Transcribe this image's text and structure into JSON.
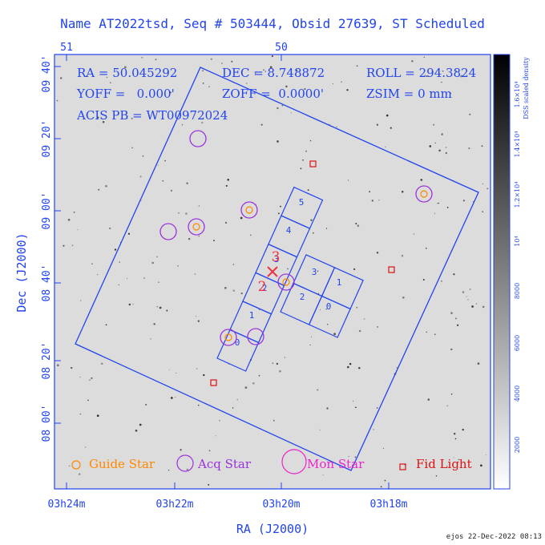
{
  "chart_data": {
    "type": "scatter",
    "title": "Name AT2022tsd, Seq # 503444, Obsid 27639, ST Scheduled",
    "xlabel": "RA (J2000)",
    "ylabel": "Dec (J2000)",
    "x_tick_labels": [
      "03h24m",
      "03h22m",
      "03h20m",
      "03h18m"
    ],
    "top_tick_labels": [
      "51",
      "50"
    ],
    "y_tick_labels": [
      "08 00'",
      "08 20'",
      "08 40'",
      "09 00'",
      "09 20'",
      "09 40'"
    ],
    "info": {
      "ra": "RA = 50.045292",
      "dec": "DEC = 8.748872",
      "roll": "ROLL = 294.3824",
      "yoff": "YOFF =   0.000'",
      "zoff": "ZOFF =  0.0000'",
      "zsim": "ZSIM = 0 mm",
      "acis_pb": "ACIS PB = WT00972024"
    },
    "colorbar": {
      "label": "DSS scaled density",
      "tick_labels": [
        "2000",
        "4000",
        "6000",
        "8000",
        "10⁴",
        "1.2×10⁴",
        "1.4×10⁴",
        "1.6×10⁴"
      ]
    },
    "ccd_labels": [
      "0",
      "1",
      "2",
      "3",
      "4",
      "5",
      "0",
      "1",
      "2",
      "3"
    ],
    "si_labels": [
      "2",
      "3"
    ],
    "legend": {
      "guide": "Guide Star",
      "acq": "Acq Star",
      "mon": "Mon Star",
      "fid": "Fid Light"
    },
    "colors": {
      "blue": "#2244ee",
      "guide": "#ff8800",
      "acq": "#9933dd",
      "mon": "#ee22cc",
      "fid": "#dd1111",
      "si": "#ee3344"
    },
    "footer": "ejos 22-Dec-2022 08:13"
  }
}
